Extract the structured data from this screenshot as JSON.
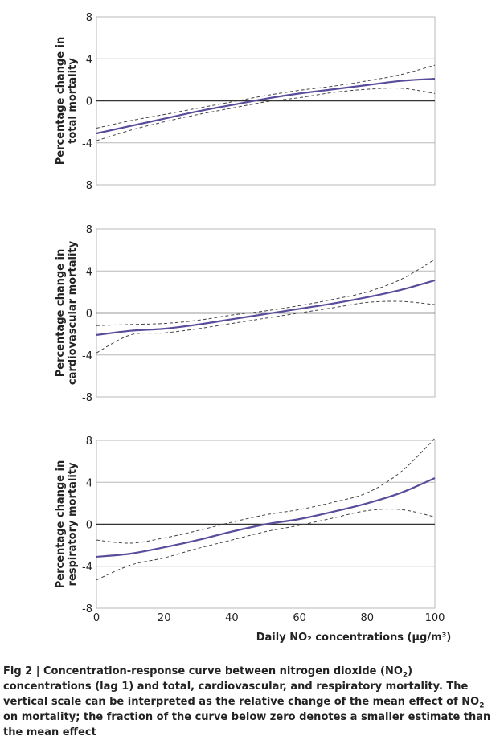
{
  "chart_data": [
    {
      "type": "line",
      "ylabel": [
        "Percentage change in",
        "total mortality"
      ],
      "xlim": [
        0,
        100
      ],
      "ylim": [
        -8,
        8
      ],
      "yticks": [
        -8,
        -4,
        0,
        4,
        8
      ],
      "grid": true,
      "x": [
        0,
        10,
        20,
        30,
        40,
        50,
        60,
        70,
        80,
        90,
        100
      ],
      "series": [
        {
          "role": "estimate",
          "style": "solid",
          "values": [
            -3.1,
            -2.4,
            -1.7,
            -1.0,
            -0.4,
            0.2,
            0.7,
            1.1,
            1.5,
            1.9,
            2.1
          ]
        },
        {
          "role": "upper",
          "style": "dashed",
          "values": [
            -2.6,
            -1.9,
            -1.3,
            -0.7,
            -0.1,
            0.5,
            1.0,
            1.4,
            1.9,
            2.5,
            3.4
          ]
        },
        {
          "role": "lower",
          "style": "dashed",
          "values": [
            -3.8,
            -2.8,
            -2.0,
            -1.3,
            -0.7,
            -0.1,
            0.3,
            0.8,
            1.1,
            1.2,
            0.7
          ]
        }
      ]
    },
    {
      "type": "line",
      "ylabel": [
        "Percentage change in",
        "cardiovascular mortality"
      ],
      "xlim": [
        0,
        100
      ],
      "ylim": [
        -8,
        8
      ],
      "yticks": [
        -8,
        -4,
        0,
        4,
        8
      ],
      "grid": true,
      "x": [
        0,
        10,
        20,
        30,
        40,
        50,
        60,
        70,
        80,
        90,
        100
      ],
      "series": [
        {
          "role": "estimate",
          "style": "solid",
          "values": [
            -2.1,
            -1.7,
            -1.5,
            -1.1,
            -0.6,
            -0.1,
            0.4,
            0.9,
            1.5,
            2.2,
            3.1
          ]
        },
        {
          "role": "upper",
          "style": "dashed",
          "values": [
            -1.2,
            -1.1,
            -1.0,
            -0.7,
            -0.2,
            0.2,
            0.7,
            1.3,
            2.0,
            3.2,
            5.1
          ]
        },
        {
          "role": "lower",
          "style": "dashed",
          "values": [
            -3.8,
            -2.1,
            -1.9,
            -1.5,
            -1.0,
            -0.5,
            0.0,
            0.5,
            1.0,
            1.1,
            0.8
          ]
        }
      ]
    },
    {
      "type": "line",
      "ylabel": [
        "Percentage change in",
        "respiratory mortality"
      ],
      "xlabel": "Daily NO₂ concentrations (μg/m³)",
      "xlim": [
        0,
        100
      ],
      "xticks": [
        0,
        20,
        40,
        60,
        80,
        100
      ],
      "ylim": [
        -8,
        8
      ],
      "yticks": [
        -8,
        -4,
        0,
        4,
        8
      ],
      "grid": true,
      "x": [
        0,
        10,
        20,
        30,
        40,
        50,
        60,
        70,
        80,
        90,
        100
      ],
      "series": [
        {
          "role": "estimate",
          "style": "solid",
          "values": [
            -3.1,
            -2.8,
            -2.2,
            -1.5,
            -0.7,
            0.0,
            0.5,
            1.2,
            2.0,
            3.0,
            4.4
          ]
        },
        {
          "role": "upper",
          "style": "dashed",
          "values": [
            -1.5,
            -1.8,
            -1.3,
            -0.6,
            0.2,
            0.9,
            1.4,
            2.1,
            3.0,
            5.0,
            8.2
          ]
        },
        {
          "role": "lower",
          "style": "dashed",
          "values": [
            -5.3,
            -3.9,
            -3.2,
            -2.3,
            -1.5,
            -0.7,
            -0.1,
            0.6,
            1.3,
            1.4,
            0.7
          ]
        }
      ]
    }
  ],
  "colors": {
    "estimate": "#5a4c9a",
    "ci": "#444444",
    "zero_line": "#333333",
    "grid": "#b8b8b8",
    "frame": "#b8b8b8"
  },
  "caption": {
    "part1": "Fig 2 | Concentration-response curve between nitrogen dioxide (NO",
    "sub1": "2",
    "part2": ") concentrations (lag 1) and total, cardiovascular, and respiratory mortality. The vertical scale can be interpreted as the relative change of the mean effect of NO",
    "sub2": "2",
    "part3": " on mortality; the fraction of the curve below zero denotes a smaller estimate than the mean effect"
  }
}
